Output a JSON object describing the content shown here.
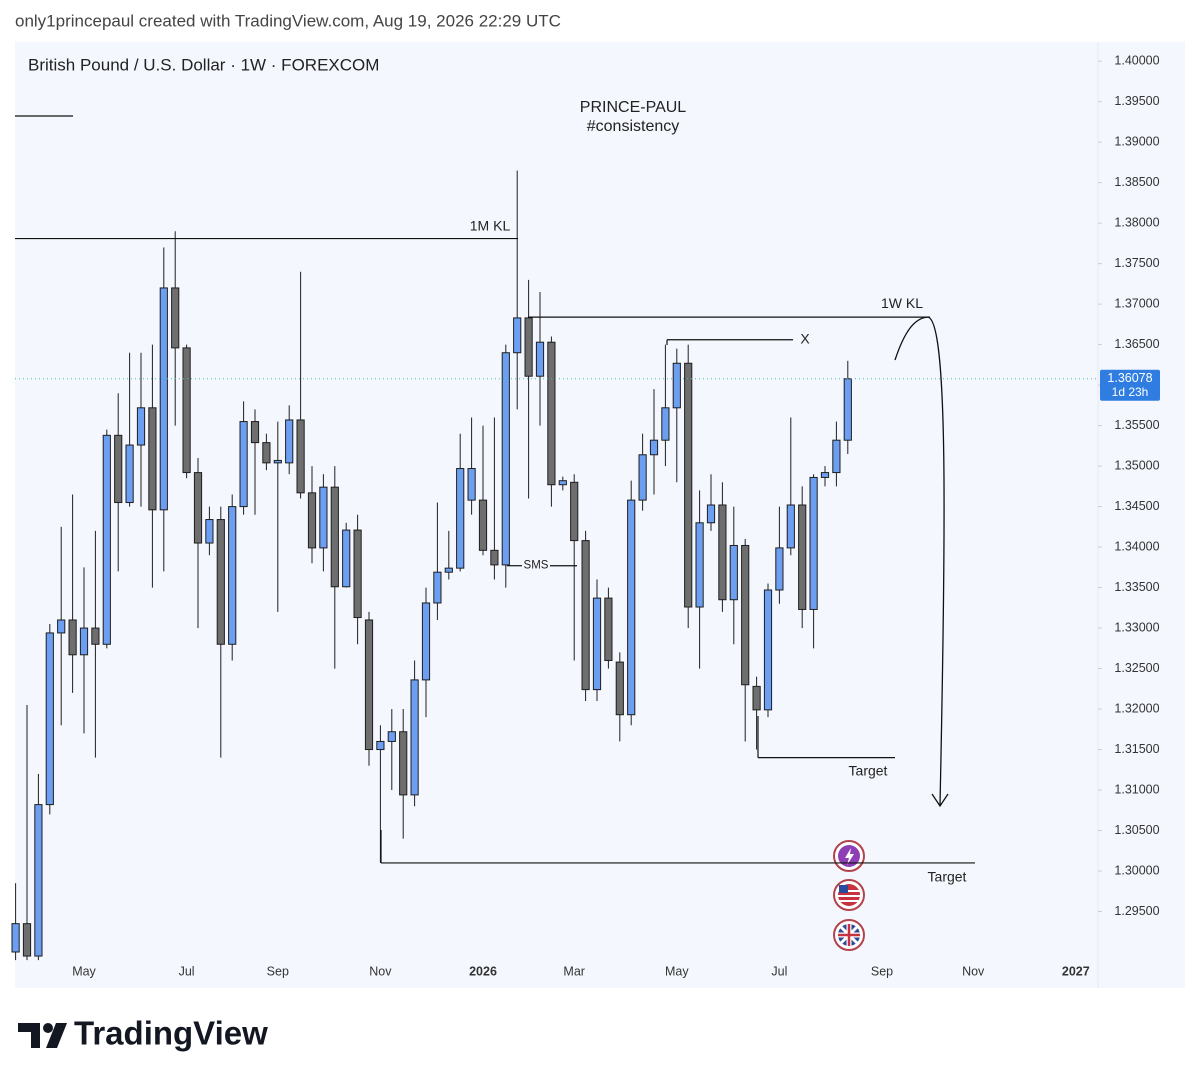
{
  "header": {
    "credit": "only1princepaul created with TradingView.com, Aug 19, 2026 22:29 UTC"
  },
  "footer": {
    "brand": "TradingView"
  },
  "chart_data": {
    "type": "candlestick",
    "title": "British Pound / U.S. Dollar · 1W · FOREXCOM",
    "annotations_title": [
      "PRINCE-PAUL",
      "#consistency"
    ],
    "categories": [
      null,
      null,
      null,
      null,
      null,
      null,
      "May",
      null,
      null,
      null,
      null,
      null,
      null,
      null,
      null,
      "Jul",
      null,
      null,
      null,
      null,
      null,
      null,
      null,
      "Sep",
      null,
      null,
      null,
      null,
      null,
      null,
      null,
      null,
      "Nov",
      null,
      null,
      null,
      null,
      null,
      null,
      null,
      null,
      "2026",
      null,
      null,
      null,
      null,
      null,
      null,
      null,
      "Mar",
      null,
      null,
      null,
      null,
      null,
      null,
      null,
      null,
      "May",
      null,
      null,
      null,
      null,
      null,
      null,
      null,
      null,
      "Jul",
      null,
      null,
      null,
      null,
      null,
      null,
      null,
      null,
      "Sep",
      null,
      null,
      null,
      null,
      null,
      null,
      null,
      "Nov",
      null,
      null,
      null,
      null,
      null,
      null,
      null,
      null,
      "2027",
      null
    ],
    "open": [
      1.29,
      1.2935,
      1.2895,
      1.3082,
      1.3294,
      1.331,
      1.3267,
      1.33,
      1.328,
      1.3538,
      1.3455,
      1.3526,
      1.3572,
      1.3446,
      1.372,
      1.3646,
      1.3492,
      1.3405,
      1.3434,
      1.328,
      1.345,
      1.3555,
      1.3529,
      1.3504,
      1.3504,
      1.3557,
      1.3467,
      1.3399,
      1.3474,
      1.3351,
      1.3421,
      1.331,
      1.315,
      1.316,
      1.3172,
      1.3094,
      1.3236,
      1.3331,
      1.3369,
      1.3374,
      1.3458,
      1.3458,
      1.3396,
      1.3378,
      1.364,
      1.3683,
      1.3611,
      1.3653,
      1.3477,
      1.348,
      1.3408,
      1.3224,
      1.3337,
      1.3258,
      1.3193,
      1.3458,
      1.3514,
      1.3532,
      1.3572,
      1.3627,
      1.3326,
      1.343,
      1.3452,
      1.3335,
      1.3402,
      1.3228,
      1.3199,
      1.3347,
      1.3399,
      1.3452,
      1.3323,
      1.3486,
      1.3492,
      1.3532,
      null,
      null,
      null,
      null,
      null,
      null,
      null,
      null,
      null,
      null,
      null,
      null,
      null,
      null,
      null,
      null,
      null,
      null,
      null,
      null,
      null
    ],
    "high": [
      1.2985,
      1.3205,
      1.312,
      1.3305,
      1.3425,
      1.3465,
      1.3375,
      1.342,
      1.3545,
      1.359,
      1.364,
      1.364,
      1.365,
      1.377,
      1.379,
      1.365,
      1.351,
      1.345,
      1.345,
      1.3465,
      1.358,
      1.357,
      1.354,
      1.3555,
      1.3575,
      1.374,
      1.35,
      1.349,
      1.35,
      1.343,
      1.344,
      1.332,
      1.318,
      1.32,
      1.32,
      1.326,
      1.335,
      1.3455,
      1.342,
      1.354,
      1.356,
      1.355,
      1.356,
      1.365,
      1.3865,
      1.373,
      1.3715,
      1.366,
      1.3487,
      1.349,
      1.342,
      1.336,
      1.335,
      1.327,
      1.3482,
      1.354,
      1.3595,
      1.365,
      1.3645,
      1.365,
      1.347,
      1.349,
      1.348,
      1.345,
      1.341,
      1.324,
      1.3355,
      1.345,
      1.356,
      1.3475,
      1.349,
      1.35,
      1.3555,
      1.363,
      null,
      null,
      null,
      null,
      null,
      null,
      null,
      null,
      null,
      null,
      null,
      null,
      null,
      null,
      null,
      null,
      null,
      null,
      null,
      null,
      null
    ],
    "low": [
      1.289,
      1.289,
      1.289,
      1.307,
      1.318,
      1.322,
      1.317,
      1.314,
      1.3275,
      1.337,
      1.345,
      1.345,
      1.335,
      1.337,
      1.355,
      1.3485,
      1.33,
      1.339,
      1.314,
      1.326,
      1.344,
      1.344,
      1.3495,
      1.332,
      1.349,
      1.346,
      1.338,
      1.337,
      1.325,
      1.335,
      1.328,
      1.313,
      1.301,
      1.31,
      1.304,
      1.308,
      1.319,
      1.331,
      1.336,
      1.337,
      1.344,
      1.339,
      1.336,
      1.335,
      1.357,
      1.346,
      1.355,
      1.345,
      1.347,
      1.326,
      1.321,
      1.321,
      1.325,
      1.316,
      1.318,
      1.3445,
      1.3465,
      1.35,
      1.348,
      1.33,
      1.325,
      1.342,
      1.332,
      1.328,
      1.316,
      1.315,
      1.319,
      1.333,
      1.339,
      1.33,
      1.3275,
      1.3475,
      1.3475,
      1.3515,
      null,
      null,
      null,
      null,
      null,
      null,
      null,
      null,
      null,
      null,
      null,
      null,
      null,
      null,
      null,
      null,
      null,
      null,
      null,
      null,
      null
    ],
    "close": [
      1.2935,
      1.2895,
      1.3082,
      1.3294,
      1.331,
      1.3267,
      1.33,
      1.328,
      1.3538,
      1.3455,
      1.3526,
      1.3572,
      1.3446,
      1.372,
      1.3646,
      1.3492,
      1.3405,
      1.3434,
      1.328,
      1.345,
      1.3555,
      1.3529,
      1.3504,
      1.3507,
      1.3557,
      1.3467,
      1.3399,
      1.3474,
      1.3351,
      1.3421,
      1.3313,
      1.315,
      1.316,
      1.3172,
      1.3094,
      1.3236,
      1.3331,
      1.3369,
      1.3374,
      1.3497,
      1.3497,
      1.3396,
      1.3378,
      1.364,
      1.3683,
      1.3611,
      1.3653,
      1.3477,
      1.3482,
      1.3408,
      1.3224,
      1.3337,
      1.326,
      1.3193,
      1.3458,
      1.3514,
      1.3532,
      1.3572,
      1.3627,
      1.3326,
      1.343,
      1.3452,
      1.3335,
      1.3402,
      1.323,
      1.3199,
      1.3347,
      1.3399,
      1.3452,
      1.3323,
      1.3486,
      1.3492,
      1.3532,
      1.36078,
      null,
      null,
      null,
      null,
      null,
      null,
      null,
      null,
      null,
      null,
      null,
      null,
      null,
      null,
      null,
      null,
      null,
      null,
      null,
      null,
      null
    ],
    "up_color": "#6c9ff2",
    "down_color": "#6e6e6e",
    "countdown": "1d 23h",
    "ylim": [
      1.29,
      1.402
    ],
    "yticks": [
      {
        "value": 1.295,
        "label": "1.29500"
      },
      {
        "value": 1.3,
        "label": "1.30000"
      },
      {
        "value": 1.305,
        "label": "1.30500"
      },
      {
        "value": 1.31,
        "label": "1.31000"
      },
      {
        "value": 1.315,
        "label": "1.31500"
      },
      {
        "value": 1.32,
        "label": "1.32000"
      },
      {
        "value": 1.325,
        "label": "1.32500"
      },
      {
        "value": 1.33,
        "label": "1.33000"
      },
      {
        "value": 1.335,
        "label": "1.33500"
      },
      {
        "value": 1.34,
        "label": "1.34000"
      },
      {
        "value": 1.345,
        "label": "1.34500"
      },
      {
        "value": 1.35,
        "label": "1.35000"
      },
      {
        "value": 1.355,
        "label": "1.35500"
      },
      {
        "value": 1.36,
        "label": "1.36000"
      },
      {
        "value": 1.365,
        "label": "1.36500"
      },
      {
        "value": 1.37,
        "label": "1.37000"
      },
      {
        "value": 1.375,
        "label": "1.37500"
      },
      {
        "value": 1.38,
        "label": "1.38000"
      },
      {
        "value": 1.385,
        "label": "1.38500"
      },
      {
        "value": 1.39,
        "label": "1.39000"
      },
      {
        "value": 1.395,
        "label": "1.39500"
      },
      {
        "value": 1.4,
        "label": "1.40000"
      }
    ],
    "annotations": [
      {
        "text": "1M KL",
        "price": 1.3781
      },
      {
        "text": "1W KL",
        "price": 1.3684
      },
      {
        "text": "X",
        "price": 1.3656
      },
      {
        "text": "SMS",
        "price": 1.3377
      },
      {
        "text": "Target",
        "price": 1.314
      },
      {
        "text": "Target",
        "price": 1.301
      }
    ]
  }
}
